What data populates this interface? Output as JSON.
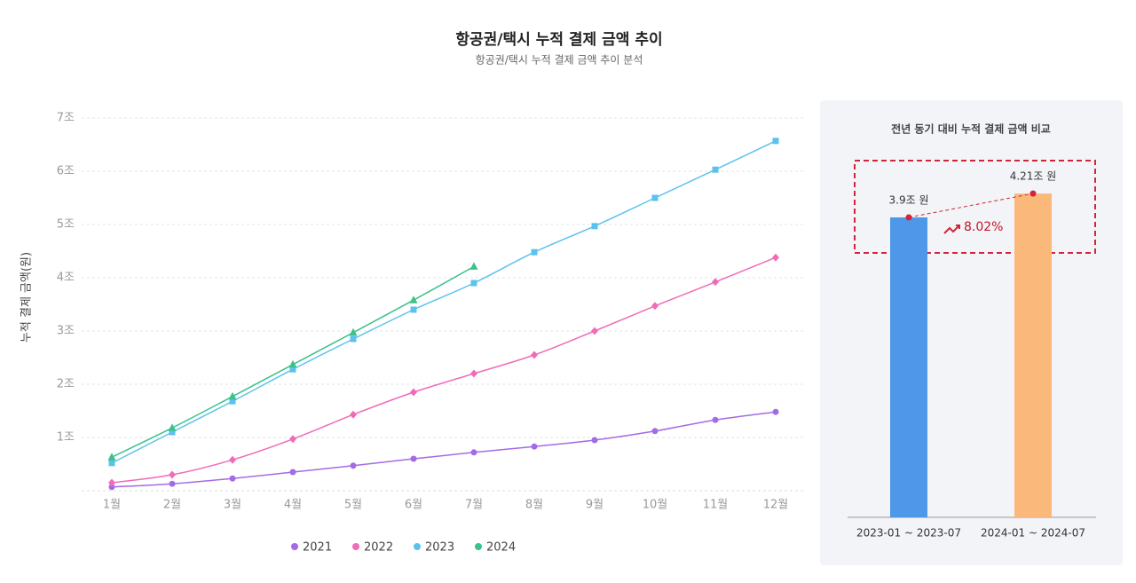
{
  "chart_data": [
    {
      "type": "line",
      "title": "항공권/택시 누적 결제 금액 추이",
      "subtitle": "항공권/택시 누적 결제 금액 추이 분석",
      "y_label": "누적 결제 금액(원)",
      "categories": [
        "1월",
        "2월",
        "3월",
        "4월",
        "5월",
        "6월",
        "7월",
        "8월",
        "9월",
        "10월",
        "11월",
        "12월"
      ],
      "series": [
        {
          "name": "2021",
          "color": "#a36be6",
          "marker": "circle",
          "values": [
            0.07,
            0.13,
            0.23,
            0.35,
            0.47,
            0.6,
            0.72,
            0.83,
            0.95,
            1.12,
            1.33,
            1.48
          ]
        },
        {
          "name": "2022",
          "color": "#f06bb8",
          "marker": "diamond",
          "values": [
            0.15,
            0.3,
            0.58,
            0.97,
            1.43,
            1.85,
            2.2,
            2.55,
            3.0,
            3.47,
            3.92,
            4.38
          ]
        },
        {
          "name": "2023",
          "color": "#5bc2ef",
          "marker": "square",
          "values": [
            0.52,
            1.1,
            1.68,
            2.28,
            2.85,
            3.4,
            3.9,
            4.48,
            4.97,
            5.5,
            6.03,
            6.57
          ]
        },
        {
          "name": "2024",
          "color": "#3cc18a",
          "marker": "triangle",
          "values": [
            0.63,
            1.18,
            1.77,
            2.37,
            2.97,
            3.58,
            4.21,
            null,
            null,
            null,
            null,
            null
          ]
        }
      ],
      "ylim": [
        0,
        7
      ],
      "yticks": [
        {
          "value": 1,
          "label": "1조"
        },
        {
          "value": 2,
          "label": "2조"
        },
        {
          "value": 3,
          "label": "3조"
        },
        {
          "value": 4,
          "label": "4조"
        },
        {
          "value": 5,
          "label": "5조"
        },
        {
          "value": 6,
          "label": "6조"
        },
        {
          "value": 7,
          "label": "7조"
        }
      ],
      "grid": true,
      "legend": "bottom"
    },
    {
      "type": "bar",
      "title": "전년 동기 대비 누적 결제 금액 비교",
      "categories": [
        "2023-01 ~ 2023-07",
        "2024-01 ~ 2024-07"
      ],
      "values": [
        3.9,
        4.21
      ],
      "value_labels": [
        "3.9조 원",
        "4.21조 원"
      ],
      "colors": [
        "#4f97e8",
        "#fbb87b"
      ],
      "ylim": [
        0,
        4.5
      ],
      "annotation": "8.02%"
    }
  ]
}
